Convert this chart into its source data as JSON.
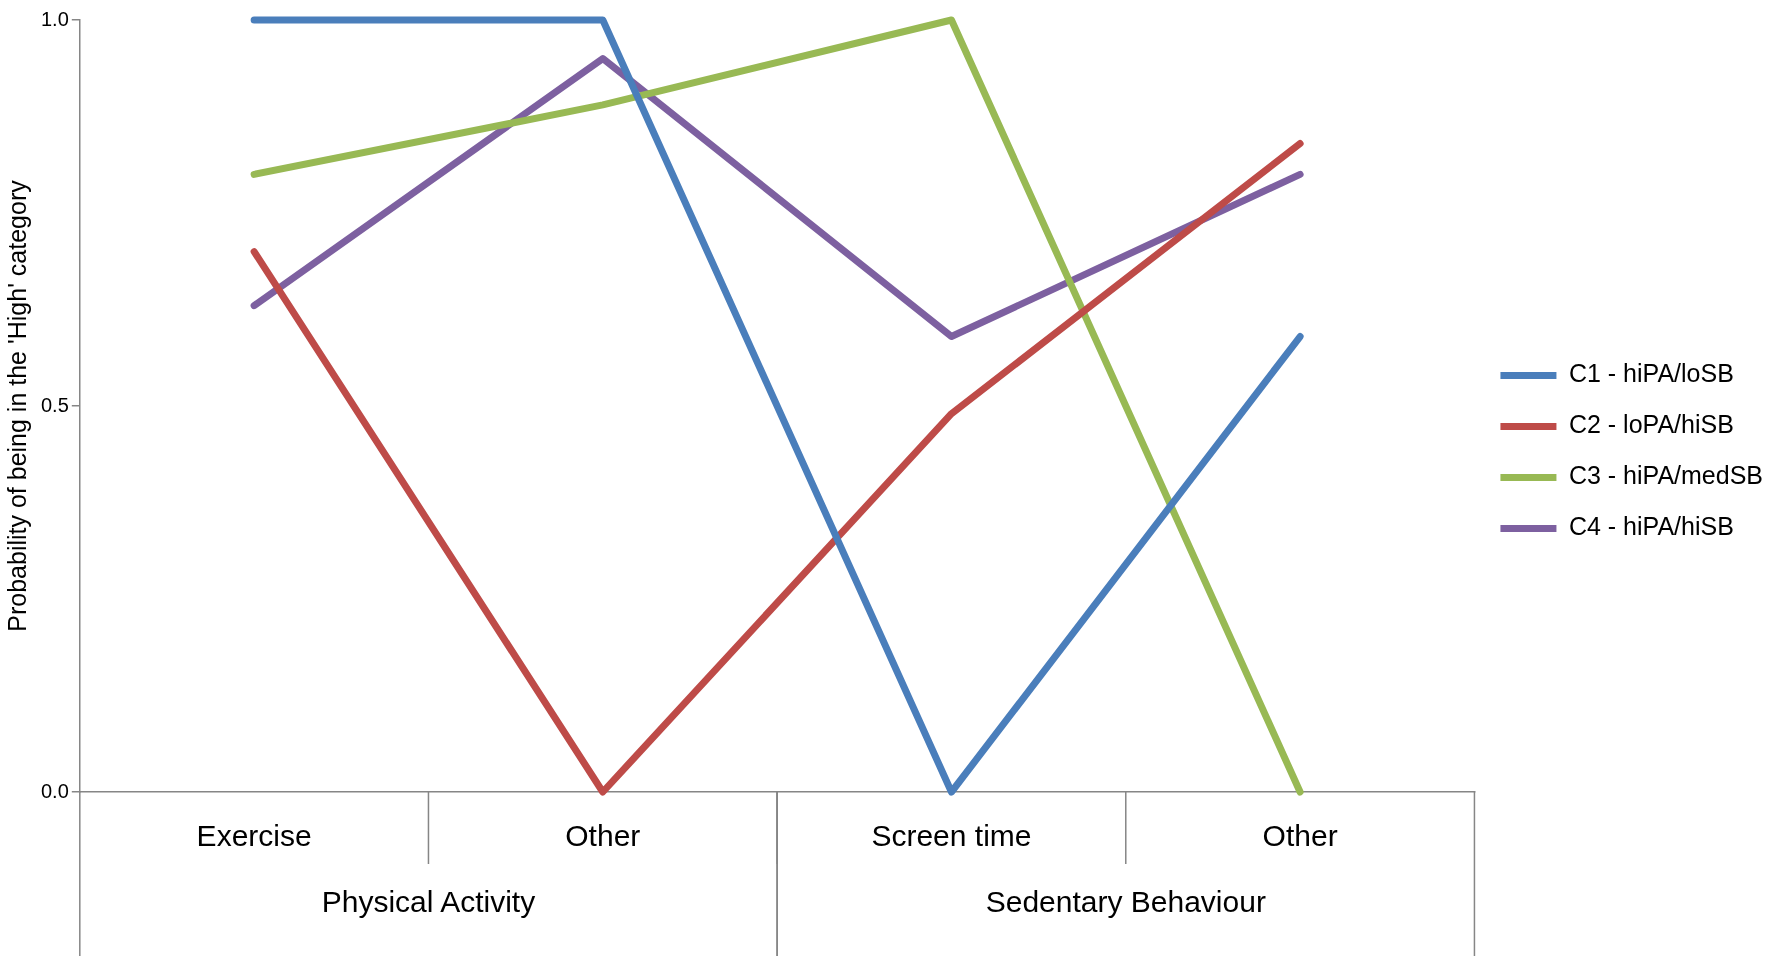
{
  "chart_data": {
    "type": "line",
    "ylabel": "Probability of being in the 'High' category",
    "categories": [
      "Exercise",
      "Other",
      "Screen time",
      "Other"
    ],
    "annotations": [
      "Physical Activity",
      "Sedentary Behaviour"
    ],
    "series": [
      {
        "name": "C1 - hiPA/loSB",
        "color": "#4a7ebb",
        "values": [
          1.0,
          1.0,
          0.0,
          0.59
        ]
      },
      {
        "name": "C2 - loPA/hiSB",
        "color": "#be4b48",
        "values": [
          0.7,
          0.0,
          0.49,
          0.84
        ]
      },
      {
        "name": "C3 - hiPA/medSB",
        "color": "#98b954",
        "values": [
          0.8,
          0.89,
          1.0,
          0.0
        ]
      },
      {
        "name": "C4 - hiPA/hiSB",
        "color": "#7d60a0",
        "values": [
          0.63,
          0.95,
          0.59,
          0.8
        ]
      }
    ],
    "ylim": [
      0,
      1
    ],
    "yticks": [
      {
        "value": 0,
        "label": "0.0"
      },
      {
        "value": 0.5,
        "label": "0.5"
      },
      {
        "value": 1,
        "label": "1.0"
      }
    ],
    "grid": false,
    "legend": "right",
    "marker": "none",
    "line_style": "solid"
  }
}
